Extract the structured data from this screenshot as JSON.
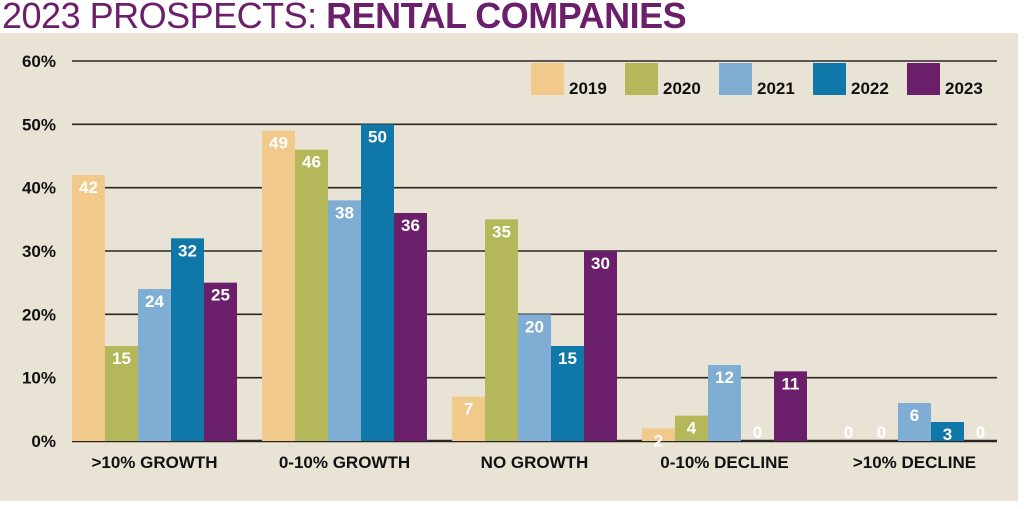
{
  "chart_data": {
    "type": "bar",
    "title_light": "2023 PROSPECTS: ",
    "title_bold": "RENTAL COMPANIES",
    "xlabel": "",
    "ylabel": "",
    "ylim": [
      0,
      60
    ],
    "yticks": [
      0,
      10,
      20,
      30,
      40,
      50,
      60
    ],
    "ytick_labels": [
      "0%",
      "10%",
      "20%",
      "30%",
      "40%",
      "50%",
      "60%"
    ],
    "grid": true,
    "legend_position": "top-right",
    "categories": [
      ">10% GROWTH",
      "0-10% GROWTH",
      "NO GROWTH",
      "0-10% DECLINE",
      ">10% DECLINE"
    ],
    "series": [
      {
        "name": "2019",
        "color": "#f0c98b",
        "values": [
          42,
          49,
          7,
          2,
          0
        ]
      },
      {
        "name": "2020",
        "color": "#b5b85a",
        "values": [
          15,
          46,
          35,
          4,
          0
        ]
      },
      {
        "name": "2021",
        "color": "#7fadd3",
        "values": [
          24,
          38,
          20,
          12,
          6
        ]
      },
      {
        "name": "2022",
        "color": "#0f78a8",
        "values": [
          32,
          50,
          15,
          0,
          3
        ]
      },
      {
        "name": "2023",
        "color": "#6b1f6a",
        "values": [
          25,
          36,
          30,
          11,
          0
        ]
      }
    ]
  },
  "colors": {
    "title": "#6b1f6a",
    "panel_background": "#e9e3d6"
  }
}
